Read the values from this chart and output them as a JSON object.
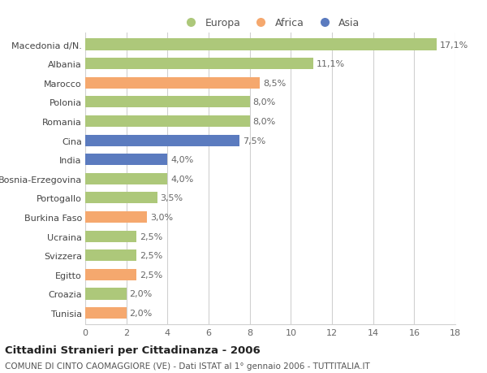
{
  "categories": [
    "Macedonia d/N.",
    "Albania",
    "Marocco",
    "Polonia",
    "Romania",
    "Cina",
    "India",
    "Bosnia-Erzegovina",
    "Portogallo",
    "Burkina Faso",
    "Ucraina",
    "Svizzera",
    "Egitto",
    "Croazia",
    "Tunisia"
  ],
  "values": [
    17.1,
    11.1,
    8.5,
    8.0,
    8.0,
    7.5,
    4.0,
    4.0,
    3.5,
    3.0,
    2.5,
    2.5,
    2.5,
    2.0,
    2.0
  ],
  "labels": [
    "17,1%",
    "11,1%",
    "8,5%",
    "8,0%",
    "8,0%",
    "7,5%",
    "4,0%",
    "4,0%",
    "3,5%",
    "3,0%",
    "2,5%",
    "2,5%",
    "2,5%",
    "2,0%",
    "2,0%"
  ],
  "continent": [
    "Europa",
    "Europa",
    "Africa",
    "Europa",
    "Europa",
    "Asia",
    "Asia",
    "Europa",
    "Europa",
    "Africa",
    "Europa",
    "Europa",
    "Africa",
    "Europa",
    "Africa"
  ],
  "colors": {
    "Europa": "#adc87a",
    "Africa": "#f5a86e",
    "Asia": "#5b7bbf"
  },
  "xlim": [
    0,
    18
  ],
  "xticks": [
    0,
    2,
    4,
    6,
    8,
    10,
    12,
    14,
    16,
    18
  ],
  "title1": "Cittadini Stranieri per Cittadinanza - 2006",
  "title2": "COMUNE DI CINTO CAOMAGGIORE (VE) - Dati ISTAT al 1° gennaio 2006 - TUTTITALIA.IT",
  "background_color": "#ffffff",
  "grid_color": "#d0d0d0",
  "bar_height": 0.6,
  "label_fontsize": 8,
  "ytick_fontsize": 8,
  "xtick_fontsize": 8,
  "title1_fontsize": 9.5,
  "title2_fontsize": 7.5
}
